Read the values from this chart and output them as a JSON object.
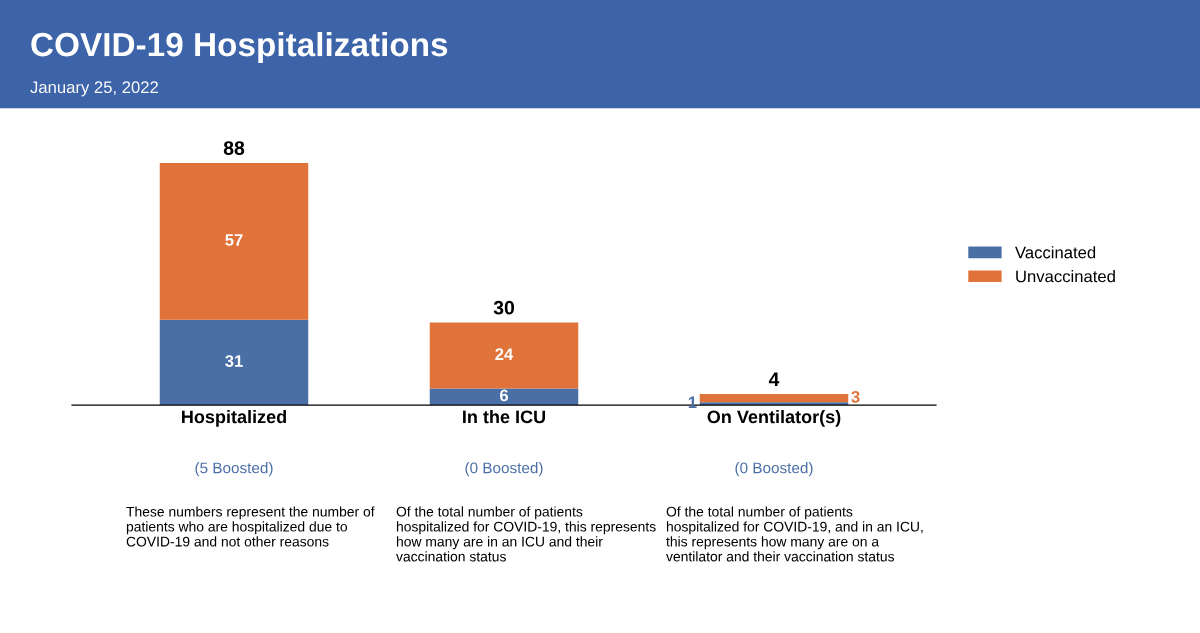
{
  "chart_data": {
    "type": "bar",
    "title": "COVID-19 Hospitalizations",
    "subtitle": "January 25, 2022",
    "stacked": true,
    "categories": [
      "Hospitalized",
      "In the ICU",
      "On Ventilator(s)"
    ],
    "series": [
      {
        "name": "Vaccinated",
        "color": "#4a6fa5",
        "values": [
          31,
          6,
          1
        ]
      },
      {
        "name": "Unvaccinated",
        "color": "#e0733a",
        "values": [
          57,
          24,
          3
        ]
      }
    ],
    "totals": [
      "88",
      "30",
      "4"
    ],
    "data_labels": true,
    "legend": "right",
    "grid": false,
    "annotations": [
      "(5 Boosted)",
      "(0 Boosted)",
      "(0 Boosted)",
      "These numbers represent the number of patients who are hospitalized due to COVID-19 and not other reasons",
      "Of the total number of patients hospitalized for COVID-19, this represents how many are in an ICU and their vaccination status",
      "Of the total number of patients hospitalized for COVID-19, and in an ICU, this represents how many are on a ventilator and their vaccination status"
    ]
  }
}
